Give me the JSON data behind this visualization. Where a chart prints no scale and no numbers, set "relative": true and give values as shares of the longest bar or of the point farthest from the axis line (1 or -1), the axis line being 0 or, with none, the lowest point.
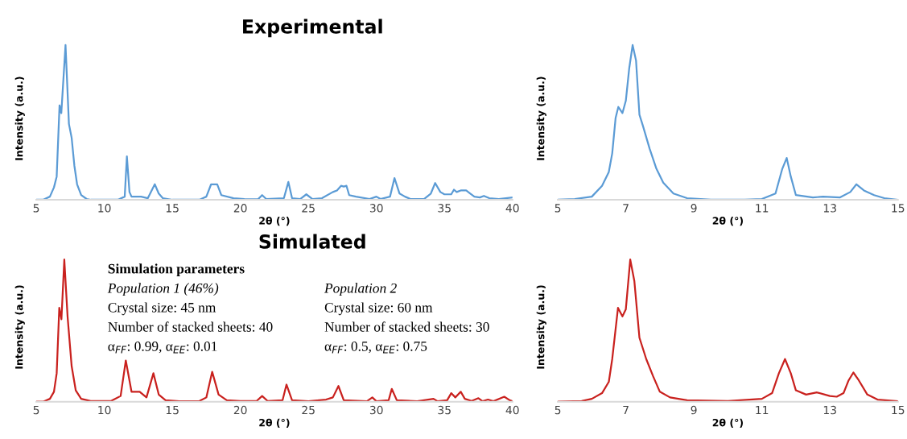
{
  "chart_data": [
    {
      "type": "line",
      "title": "Experimental",
      "xlabel": "2θ (°)",
      "ylabel": "Intensity (a.u.)",
      "relative": true,
      "tick_labels": "x",
      "xlim": [
        5,
        40
      ],
      "xticks": [
        5,
        10,
        15,
        20,
        25,
        30,
        35,
        40
      ],
      "series": [
        {
          "color": "#5b9bd5",
          "x": [
            5,
            5.5,
            6.0,
            6.3,
            6.5,
            6.71,
            6.84,
            7.15,
            7.4,
            7.6,
            7.8,
            8.0,
            8.3,
            8.7,
            9,
            11,
            11.5,
            11.66,
            11.85,
            12.0,
            12.7,
            13.2,
            13.71,
            14.0,
            14.3,
            15,
            17,
            17.5,
            17.85,
            18.3,
            18.6,
            19.5,
            20.3,
            21.3,
            21.6,
            21.9,
            23.2,
            23.53,
            23.8,
            24.4,
            24.85,
            25.3,
            26,
            26.8,
            27.1,
            27.4,
            27.6,
            27.8,
            28.0,
            28.5,
            29.5,
            30.0,
            30.3,
            31.0,
            31.33,
            31.7,
            32.1,
            32.5,
            33.5,
            34.0,
            34.32,
            34.7,
            35.0,
            35.5,
            35.7,
            35.9,
            36.2,
            36.6,
            36.9,
            37.2,
            37.6,
            37.9,
            38.3,
            39.0,
            39.5,
            40
          ],
          "values": [
            0,
            0,
            0.02,
            0.08,
            0.15,
            0.61,
            0.56,
            1.0,
            0.49,
            0.4,
            0.22,
            0.1,
            0.03,
            0.005,
            0,
            0,
            0.02,
            0.28,
            0.05,
            0.02,
            0.02,
            0.01,
            0.1,
            0.04,
            0.01,
            0,
            0,
            0.02,
            0.1,
            0.1,
            0.03,
            0.01,
            0.005,
            0.003,
            0.03,
            0.005,
            0.01,
            0.115,
            0.01,
            0.005,
            0.035,
            0.005,
            0.01,
            0.05,
            0.06,
            0.09,
            0.085,
            0.09,
            0.03,
            0.02,
            0.005,
            0.02,
            0.005,
            0.02,
            0.14,
            0.04,
            0.02,
            0.005,
            0.005,
            0.04,
            0.108,
            0.05,
            0.035,
            0.035,
            0.065,
            0.05,
            0.06,
            0.06,
            0.04,
            0.02,
            0.015,
            0.025,
            0.01,
            0.005,
            0.01,
            0.015
          ]
        }
      ]
    },
    {
      "type": "line",
      "xlabel": "2θ (°)",
      "ylabel": "Intensity (a.u.)",
      "relative": true,
      "tick_labels": "x",
      "xlim": [
        5,
        15
      ],
      "xticks": [
        5,
        7,
        9,
        11,
        13,
        15
      ],
      "series": [
        {
          "color": "#5b9bd5",
          "x": [
            5,
            5.5,
            6.0,
            6.3,
            6.5,
            6.6,
            6.7,
            6.78,
            6.9,
            7.0,
            7.1,
            7.2,
            7.3,
            7.4,
            7.5,
            7.7,
            7.9,
            8.1,
            8.4,
            8.8,
            9.5,
            10.5,
            11.0,
            11.4,
            11.6,
            11.73,
            11.85,
            12.0,
            12.5,
            12.8,
            13.3,
            13.6,
            13.78,
            14.0,
            14.3,
            14.6,
            15
          ],
          "values": [
            0,
            0.005,
            0.02,
            0.09,
            0.18,
            0.3,
            0.53,
            0.6,
            0.56,
            0.64,
            0.85,
            1.0,
            0.9,
            0.55,
            0.48,
            0.33,
            0.2,
            0.11,
            0.04,
            0.01,
            0,
            0,
            0.005,
            0.04,
            0.2,
            0.27,
            0.15,
            0.03,
            0.015,
            0.02,
            0.015,
            0.05,
            0.1,
            0.06,
            0.03,
            0.01,
            0
          ]
        }
      ]
    },
    {
      "type": "line",
      "title": "Simulated",
      "xlabel": "2θ (°)",
      "ylabel": "Intensity (a.u.)",
      "relative": true,
      "tick_labels": "x",
      "xlim": [
        5,
        40
      ],
      "xticks": [
        5,
        10,
        15,
        20,
        25,
        30,
        35,
        40
      ],
      "annotations": [
        "Simulation parameters",
        "Population 1 (46%)",
        "Population 2",
        "Crystal size: 45 nm",
        "Crystal size: 60 nm",
        "Number of stacked sheets: 40",
        "Number of stacked sheets: 30",
        "α$_{FF}$: 0.99, α$_{EE}$: 0.01",
        "α$_{FF}$: 0.5, α$_{EE}$: 0.75"
      ],
      "series": [
        {
          "color": "#c9211e",
          "x": [
            5,
            5.5,
            6.0,
            6.3,
            6.5,
            6.69,
            6.85,
            7.06,
            7.3,
            7.6,
            7.9,
            8.3,
            9,
            10.5,
            11.2,
            11.58,
            12.0,
            12.6,
            13.1,
            13.61,
            14.0,
            14.5,
            15.5,
            17.0,
            17.5,
            17.93,
            18.4,
            19,
            20,
            21.2,
            21.6,
            22,
            23.1,
            23.39,
            23.8,
            25,
            26.3,
            26.8,
            27.21,
            27.6,
            29.3,
            29.7,
            30.0,
            30.9,
            31.13,
            31.5,
            33,
            34.2,
            34.5,
            35.2,
            35.5,
            35.8,
            36.2,
            36.5,
            37.0,
            37.5,
            37.8,
            38.2,
            38.6,
            39.4,
            39.8,
            40
          ],
          "values": [
            0,
            0,
            0.02,
            0.07,
            0.2,
            0.66,
            0.58,
            1.0,
            0.6,
            0.25,
            0.08,
            0.02,
            0.005,
            0.005,
            0.04,
            0.29,
            0.07,
            0.07,
            0.03,
            0.2,
            0.05,
            0.01,
            0.003,
            0.005,
            0.03,
            0.21,
            0.05,
            0.01,
            0.005,
            0.005,
            0.04,
            0.005,
            0.01,
            0.12,
            0.01,
            0.003,
            0.015,
            0.03,
            0.11,
            0.01,
            0.003,
            0.03,
            0.003,
            0.01,
            0.09,
            0.01,
            0.003,
            0.02,
            0.003,
            0.01,
            0.06,
            0.03,
            0.07,
            0.02,
            0.005,
            0.025,
            0.003,
            0.015,
            0.003,
            0.035,
            0.01,
            0.003
          ]
        }
      ]
    },
    {
      "type": "line",
      "xlabel": "2θ (°)",
      "ylabel": "Intensity (a.u.)",
      "relative": true,
      "tick_labels": "x",
      "xlim": [
        5,
        15
      ],
      "xticks": [
        5,
        7,
        9,
        11,
        13,
        15
      ],
      "series": [
        {
          "color": "#c9211e",
          "x": [
            5,
            5.7,
            6.0,
            6.3,
            6.5,
            6.6,
            6.77,
            6.9,
            7.0,
            7.13,
            7.25,
            7.4,
            7.6,
            7.8,
            8.0,
            8.3,
            8.8,
            10,
            11,
            11.3,
            11.5,
            11.68,
            11.85,
            12.0,
            12.3,
            12.62,
            13.0,
            13.2,
            13.4,
            13.55,
            13.69,
            13.85,
            14.1,
            14.4,
            15
          ],
          "values": [
            0,
            0.005,
            0.02,
            0.06,
            0.14,
            0.3,
            0.66,
            0.6,
            0.65,
            1.0,
            0.85,
            0.45,
            0.3,
            0.18,
            0.07,
            0.03,
            0.01,
            0.005,
            0.02,
            0.06,
            0.2,
            0.3,
            0.2,
            0.08,
            0.05,
            0.065,
            0.04,
            0.035,
            0.06,
            0.15,
            0.205,
            0.15,
            0.05,
            0.015,
            0.003
          ]
        }
      ]
    }
  ]
}
